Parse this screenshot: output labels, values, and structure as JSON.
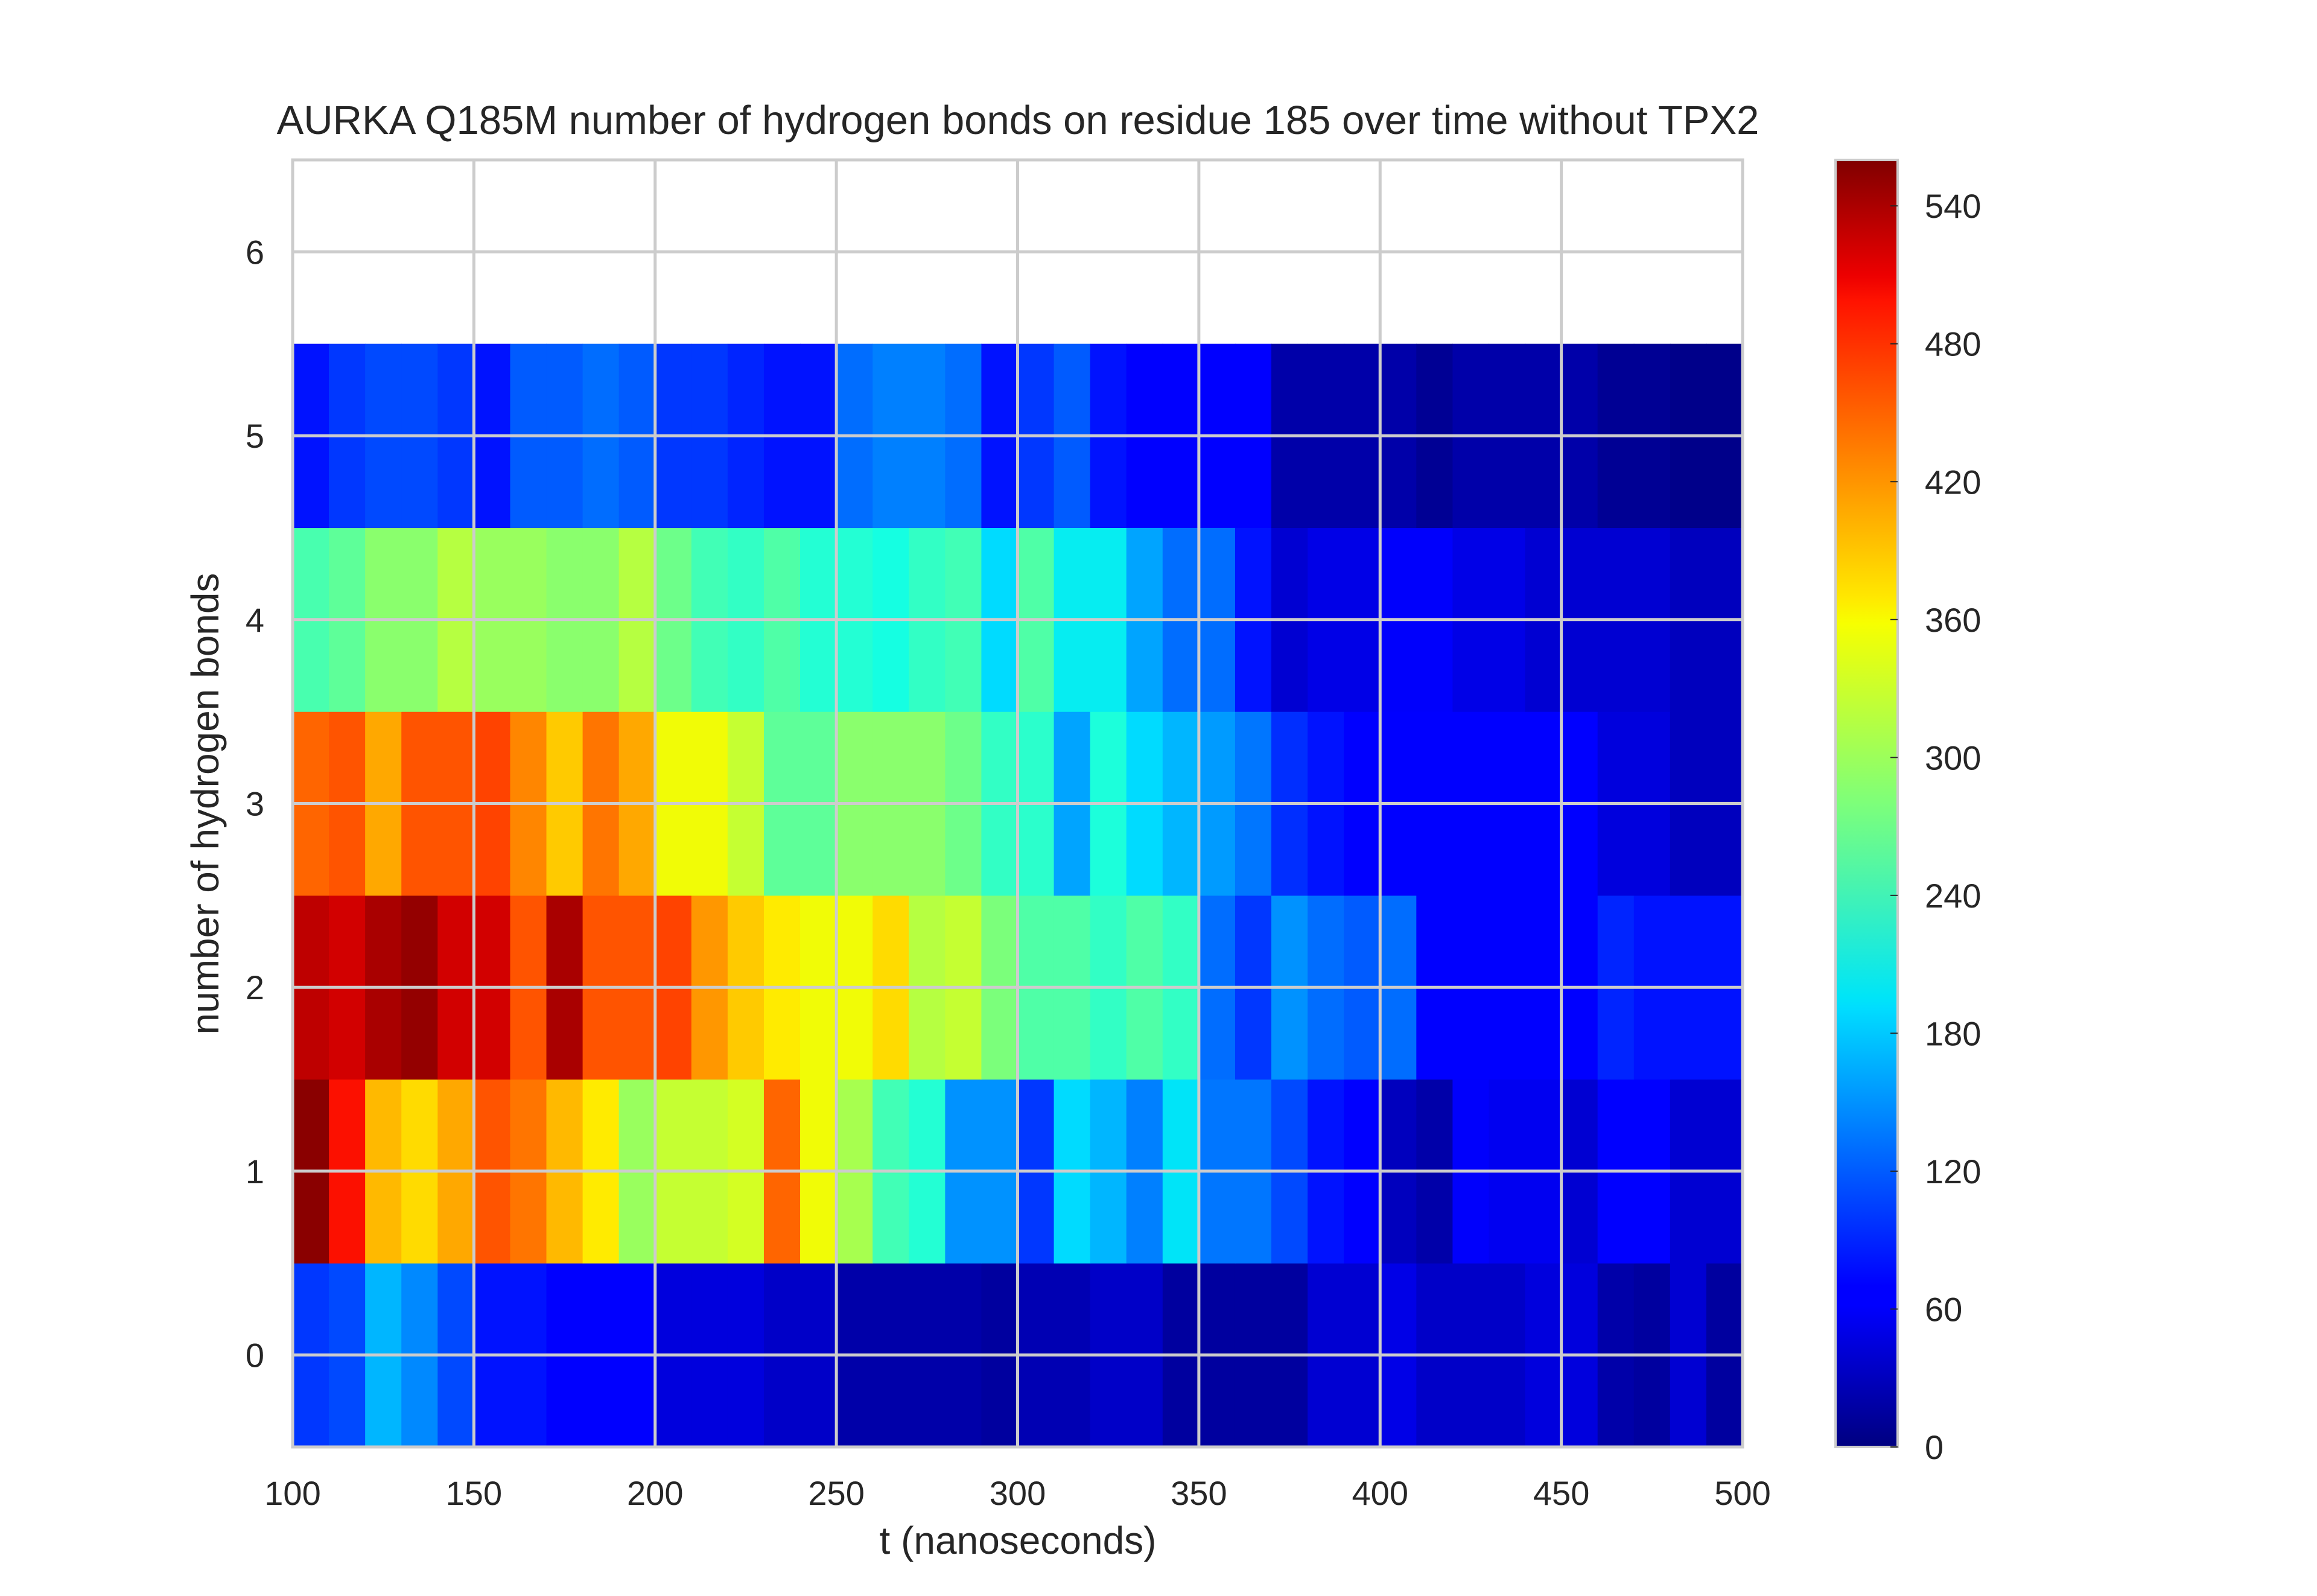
{
  "chart_data": {
    "type": "heatmap",
    "title": "AURKA Q185M number of hydrogen bonds on residue 185 over time without TPX2",
    "xlabel": "t (nanoseconds)",
    "ylabel": "number of hydrogen bonds",
    "xlim": [
      100,
      500
    ],
    "ylim": [
      -0.5,
      6.5
    ],
    "x_ticks": [
      "100",
      "150",
      "200",
      "250",
      "300",
      "350",
      "400",
      "450",
      "500"
    ],
    "y_ticks": [
      "0",
      "1",
      "2",
      "3",
      "4",
      "5",
      "6"
    ],
    "x_bin_start": 100,
    "x_bin_width": 10,
    "y_bins": [
      0,
      1,
      2,
      3,
      4,
      5
    ],
    "colormap": "jet",
    "colorbar": {
      "min": 0,
      "max": 560,
      "ticks": [
        "0",
        "60",
        "120",
        "180",
        "240",
        "300",
        "360",
        "420",
        "480",
        "540"
      ]
    },
    "grid": true,
    "values": [
      [
        100,
        110,
        170,
        145,
        110,
        80,
        80,
        70,
        70,
        70,
        45,
        45,
        45,
        35,
        35,
        20,
        20,
        20,
        20,
        15,
        25,
        25,
        35,
        35,
        15,
        15,
        15,
        15,
        40,
        40,
        50,
        35,
        35,
        35,
        45,
        45,
        20,
        15,
        40,
        15
      ],
      [
        555,
        500,
        400,
        380,
        410,
        460,
        440,
        400,
        370,
        300,
        330,
        330,
        340,
        450,
        360,
        310,
        240,
        220,
        150,
        150,
        100,
        190,
        170,
        140,
        195,
        135,
        135,
        110,
        80,
        70,
        30,
        20,
        60,
        55,
        55,
        40,
        70,
        70,
        40,
        40
      ],
      [
        530,
        520,
        540,
        550,
        520,
        520,
        460,
        540,
        460,
        460,
        470,
        420,
        390,
        370,
        360,
        360,
        380,
        320,
        330,
        280,
        250,
        250,
        230,
        250,
        230,
        130,
        100,
        150,
        130,
        120,
        130,
        70,
        70,
        70,
        70,
        70,
        90,
        80,
        80,
        80
      ],
      [
        450,
        460,
        410,
        460,
        460,
        470,
        430,
        390,
        440,
        410,
        360,
        360,
        330,
        260,
        260,
        290,
        290,
        290,
        270,
        230,
        225,
        160,
        215,
        190,
        170,
        155,
        135,
        95,
        80,
        70,
        70,
        70,
        70,
        70,
        70,
        70,
        45,
        45,
        30,
        30
      ],
      [
        245,
        260,
        290,
        290,
        320,
        300,
        300,
        290,
        290,
        320,
        270,
        240,
        230,
        250,
        220,
        220,
        210,
        230,
        240,
        190,
        250,
        200,
        200,
        160,
        130,
        130,
        80,
        40,
        50,
        50,
        60,
        60,
        50,
        50,
        40,
        40,
        40,
        40,
        30,
        30
      ],
      [
        80,
        100,
        110,
        110,
        100,
        80,
        120,
        120,
        130,
        120,
        100,
        100,
        90,
        80,
        80,
        130,
        140,
        140,
        130,
        80,
        100,
        120,
        80,
        70,
        70,
        70,
        70,
        20,
        20,
        20,
        20,
        10,
        20,
        20,
        20,
        20,
        10,
        10,
        5,
        5
      ]
    ]
  }
}
